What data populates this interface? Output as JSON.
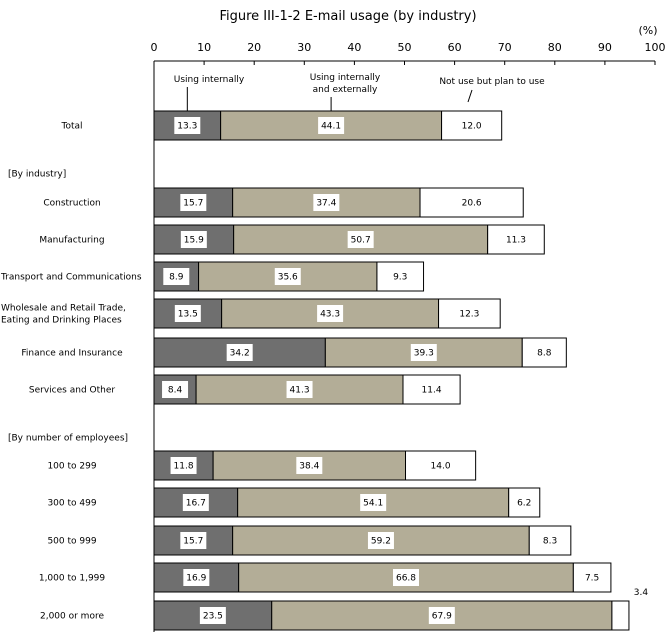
{
  "chart_data": {
    "type": "bar",
    "orientation": "horizontal",
    "stacked": true,
    "title": "Figure III-1-2 E-mail usage (by industry)",
    "unit": "(%)",
    "xlim": [
      0,
      100
    ],
    "xticks": [
      "0",
      "10",
      "20",
      "30",
      "40",
      "50",
      "60",
      "70",
      "80",
      "90",
      "100"
    ],
    "grid": false,
    "legend": "annotations above first bar",
    "series": [
      {
        "name": "Using internally",
        "color": "#6f6f6f"
      },
      {
        "name": "Using internally and externally",
        "name_lines": [
          "Using internally",
          "and externally"
        ],
        "color": "#b3ad97"
      },
      {
        "name": "Not use but plan to use",
        "color": "#ffffff"
      }
    ],
    "rows": [
      {
        "label": [
          "Total"
        ],
        "values": [
          13.3,
          44.1,
          12.0
        ]
      },
      {
        "label": [
          "[By industry]"
        ],
        "header": true
      },
      {
        "label": [
          "Construction"
        ],
        "values": [
          15.7,
          37.4,
          20.6
        ]
      },
      {
        "label": [
          "Manufacturing"
        ],
        "values": [
          15.9,
          50.7,
          11.3
        ]
      },
      {
        "label": [
          "Transport and Communications"
        ],
        "values": [
          8.9,
          35.6,
          9.3
        ]
      },
      {
        "label": [
          "Wholesale and Retail Trade,",
          "Eating and Drinking Places"
        ],
        "values": [
          13.5,
          43.3,
          12.3
        ]
      },
      {
        "label": [
          "Finance and Insurance"
        ],
        "values": [
          34.2,
          39.3,
          8.8
        ]
      },
      {
        "label": [
          "Services and Other"
        ],
        "values": [
          8.4,
          41.3,
          11.4
        ]
      },
      {
        "label": [
          "[By number of employees]"
        ],
        "header": true
      },
      {
        "label": [
          "100 to 299"
        ],
        "values": [
          11.8,
          38.4,
          14.0
        ]
      },
      {
        "label": [
          "300 to 499"
        ],
        "values": [
          16.7,
          54.1,
          6.2
        ]
      },
      {
        "label": [
          "500 to 999"
        ],
        "values": [
          15.7,
          59.2,
          8.3
        ]
      },
      {
        "label": [
          "1,000 to 1,999"
        ],
        "values": [
          16.9,
          66.8,
          7.5
        ]
      },
      {
        "label": [
          "2,000 or more"
        ],
        "values": [
          23.5,
          67.9,
          3.4
        ],
        "outside_last_label": true
      }
    ]
  }
}
